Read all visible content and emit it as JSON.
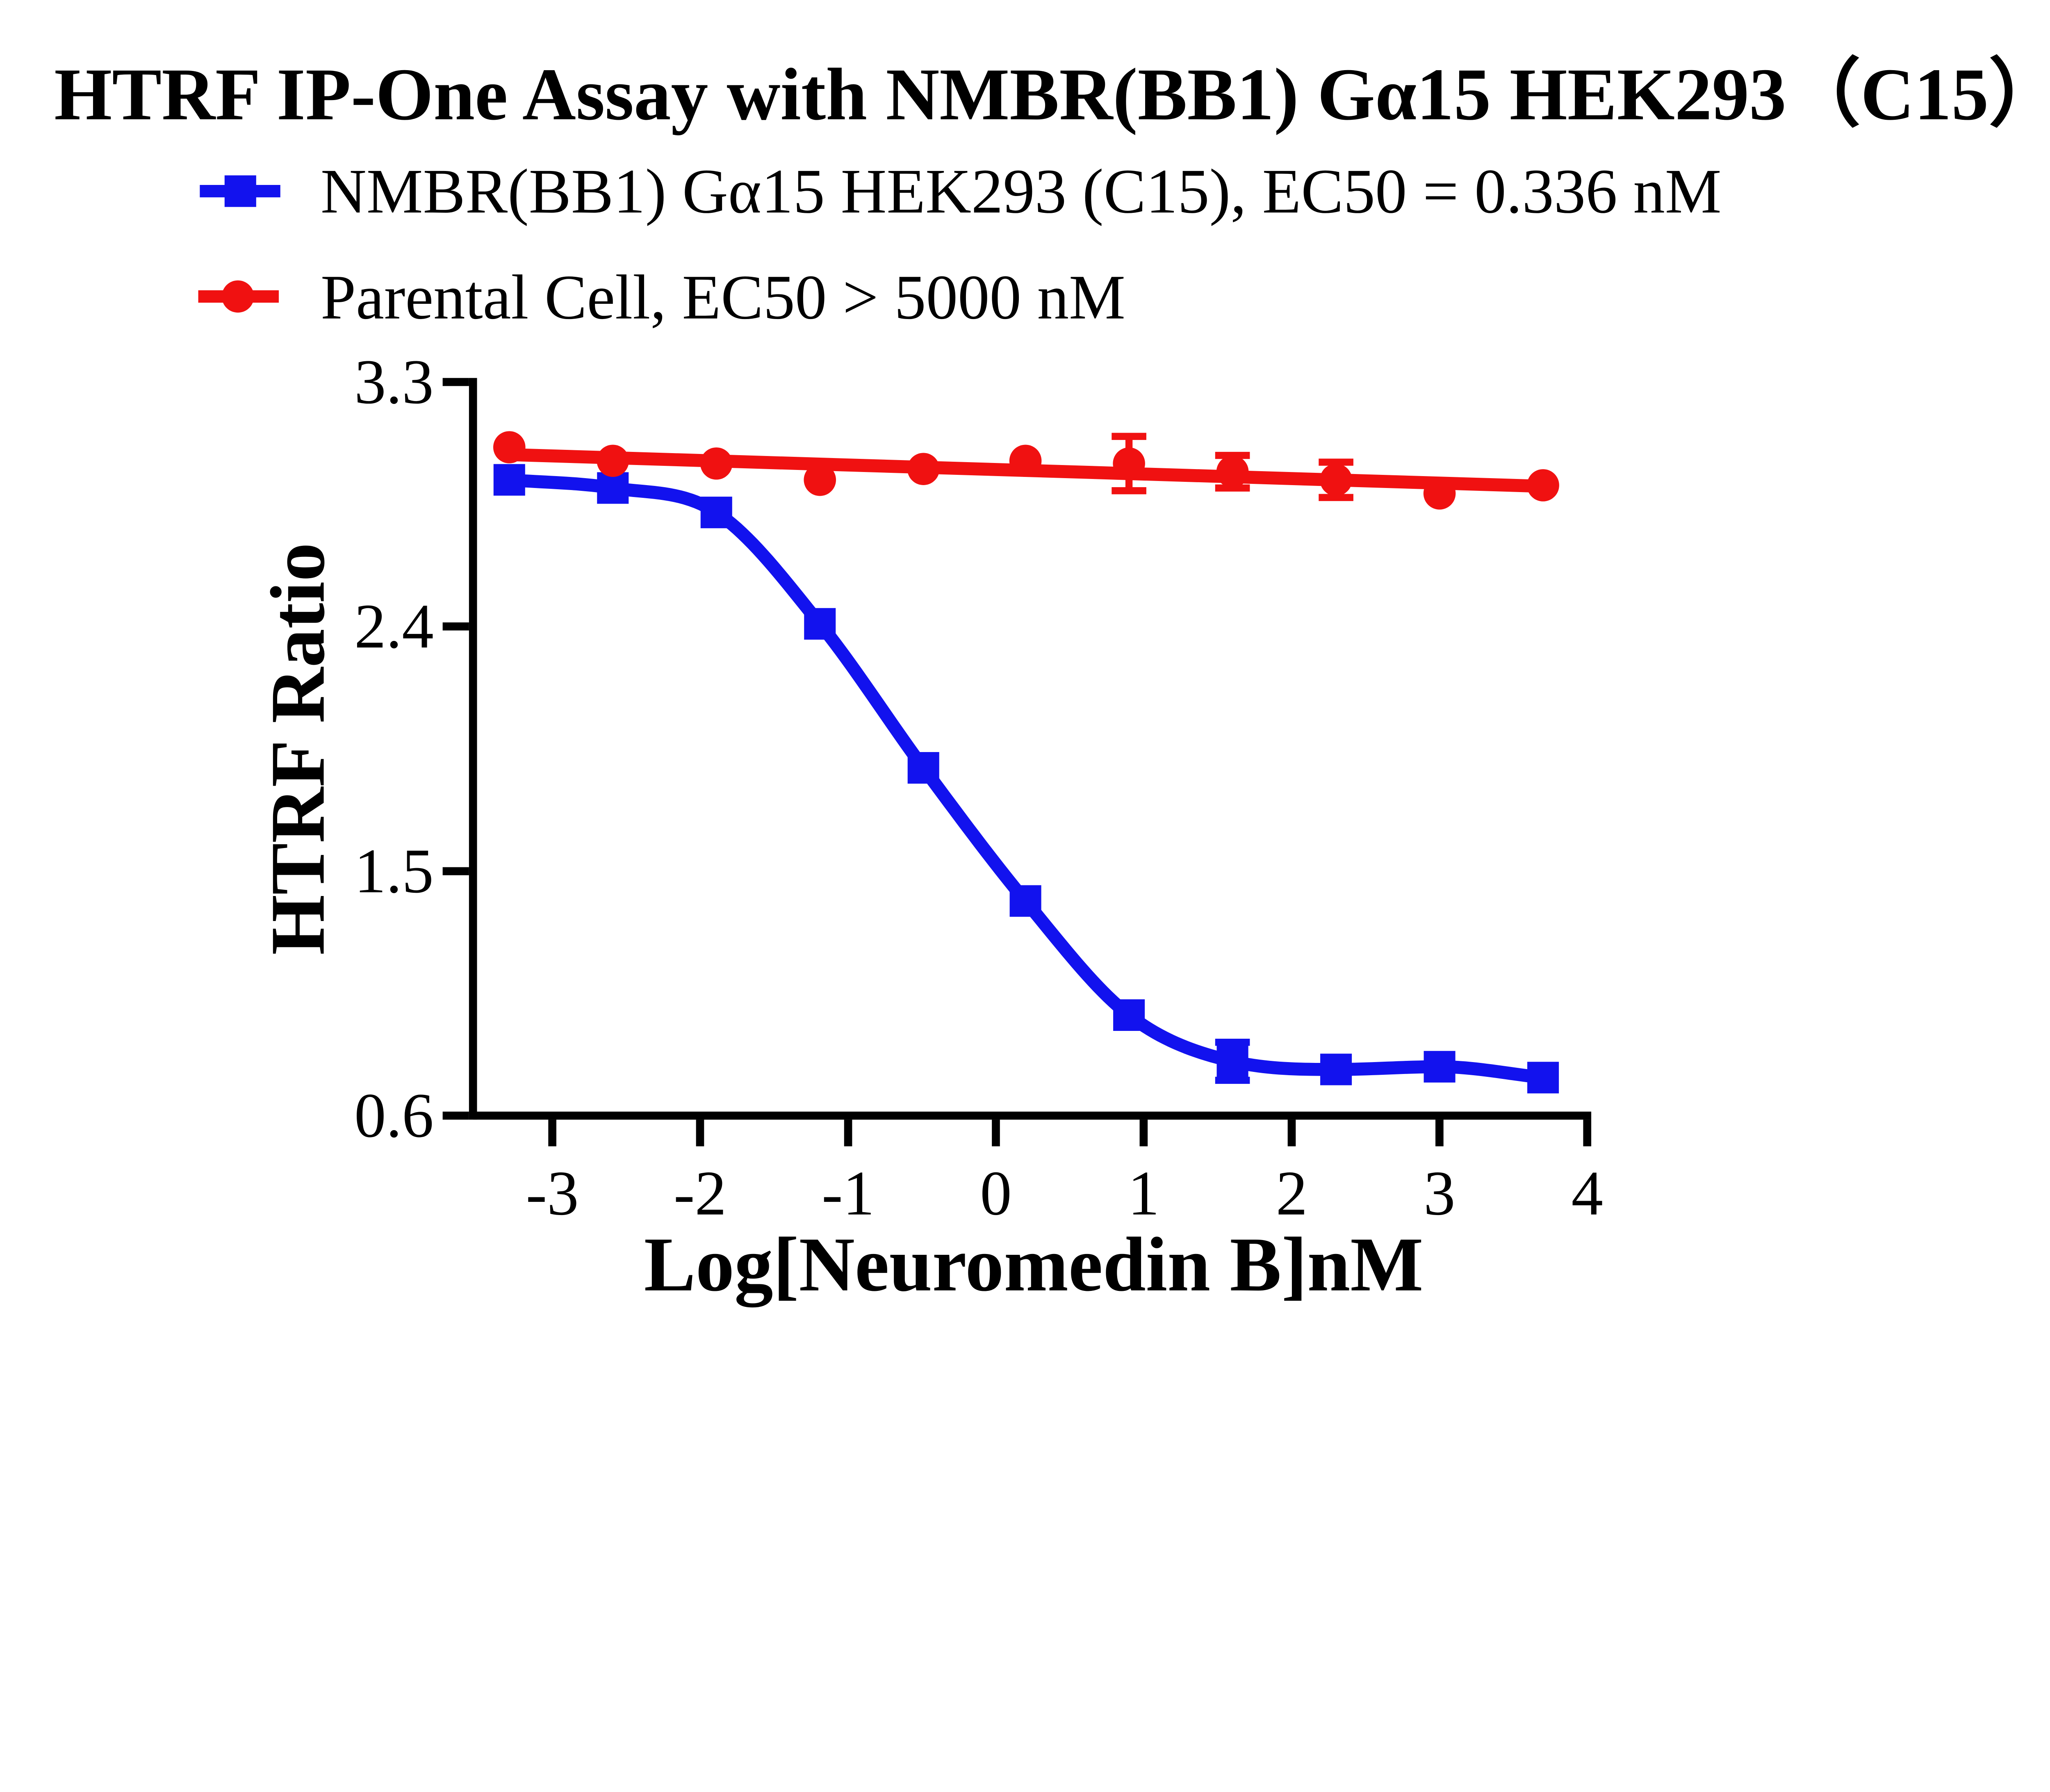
{
  "title": "HTRF IP-One Assay with NMBR(BB1) Gα15 HEK293（C15）",
  "legend": [
    {
      "label": "NMBR(BB1)  Gα15 HEK293 (C15), EC50 = 0.336 nM",
      "marker": "square",
      "color": "#1212ee"
    },
    {
      "label": "Parental Cell,  EC50 > 5000 nM",
      "marker": "circle",
      "color": "#f01111"
    }
  ],
  "chart_data": {
    "type": "scatter",
    "title": "HTRF IP-One Assay with NMBR(BB1) Gα15 HEK293（C15）",
    "xlabel": "Log[Neuromedin B]nM",
    "ylabel": "HTRF Ratio",
    "xlim": [
      -3.55,
      4.0
    ],
    "ylim": [
      0.6,
      3.3
    ],
    "grid": false,
    "legend_position": "top-left",
    "x_ticks": [
      "-3",
      "-2",
      "-1",
      "0",
      "1",
      "2",
      "3",
      "4"
    ],
    "y_ticks": [
      "3.3",
      "2.4",
      "1.5",
      "0.6"
    ],
    "x": [
      -3.29,
      -2.59,
      -1.89,
      -1.19,
      -0.49,
      0.2,
      0.9,
      1.6,
      2.3,
      3.0,
      3.7
    ],
    "series": [
      {
        "name": "NMBR(BB1)  Gα15 HEK293 (C15)",
        "ec50": "EC50 = 0.336 nM",
        "marker": "square",
        "color": "#1212ee",
        "fit": "sigmoid",
        "values": [
          2.94,
          2.91,
          2.82,
          2.41,
          1.88,
          1.39,
          0.97,
          0.8,
          0.77,
          0.78,
          0.74
        ],
        "errors": [
          0,
          0,
          0,
          0,
          0,
          0,
          0,
          0.07,
          0,
          0,
          0
        ]
      },
      {
        "name": "Parental Cell",
        "ec50": "EC50 > 5000 nM",
        "marker": "circle",
        "color": "#f01111",
        "fit": "linear",
        "values": [
          3.06,
          3.01,
          3.0,
          2.94,
          2.98,
          3.01,
          3.0,
          2.97,
          2.94,
          2.89,
          2.92
        ],
        "errors": [
          0,
          0,
          0,
          0,
          0,
          0,
          0.1,
          0.06,
          0.065,
          0,
          0
        ]
      }
    ]
  }
}
